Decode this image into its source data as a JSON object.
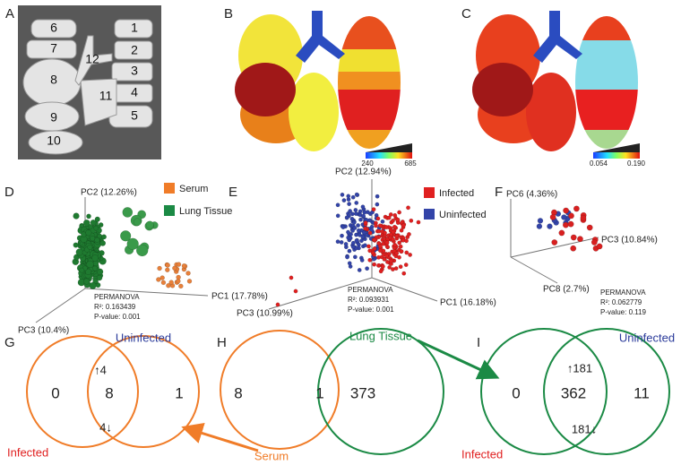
{
  "panels": {
    "A": {
      "label": "A",
      "lobes": [
        "1",
        "2",
        "3",
        "4",
        "5",
        "6",
        "7",
        "8",
        "9",
        "10",
        "11",
        "12"
      ]
    },
    "B": {
      "label": "B",
      "scale_min": "240",
      "scale_max": "685"
    },
    "C": {
      "label": "C",
      "scale_min": "0.054",
      "scale_max": "0.190"
    },
    "D": {
      "label": "D",
      "axis_pc2": "PC2 (12.26%)",
      "axis_pc1": "PC1 (17.78%)",
      "axis_pc3": "PC3 (10.4%)",
      "legend": [
        "Serum",
        "Lung Tissue"
      ],
      "stats": [
        "PERMANOVA",
        "R²: 0.163439",
        "P-value: 0.001"
      ]
    },
    "E": {
      "label": "E",
      "axis_pc2": "PC2 (12.94%)",
      "axis_pc1": "PC1 (16.18%)",
      "axis_pc3": "PC3 (10.99%)",
      "legend": [
        "Infected",
        "Uninfected"
      ],
      "stats": [
        "PERMANOVA",
        "R²: 0.093931",
        "P-value: 0.001"
      ]
    },
    "F": {
      "label": "F",
      "axis_pc6": "PC6 (4.36%)",
      "axis_pc3": "PC3 (10.84%)",
      "axis_pc8": "PC8 (2.7%)",
      "stats": [
        "PERMANOVA",
        "R²: 0.062779",
        "P-value: 0.119"
      ]
    },
    "G": {
      "label": "G",
      "right_set": "Uninfected",
      "left_set": "Infected",
      "left_only": "0",
      "shared": "8",
      "up": "↑4",
      "down": "4↓",
      "right_only": "1"
    },
    "H": {
      "label": "H",
      "left_only": "8",
      "shared": "1",
      "right_only": "373",
      "right_set": "Lung Tissue",
      "left_set": "Serum"
    },
    "I": {
      "label": "I",
      "right_set": "Uninfected",
      "left_set": "Infected",
      "left_only": "0",
      "shared": "362",
      "up": "↑181",
      "down": "181↓",
      "right_only": "11"
    }
  }
}
